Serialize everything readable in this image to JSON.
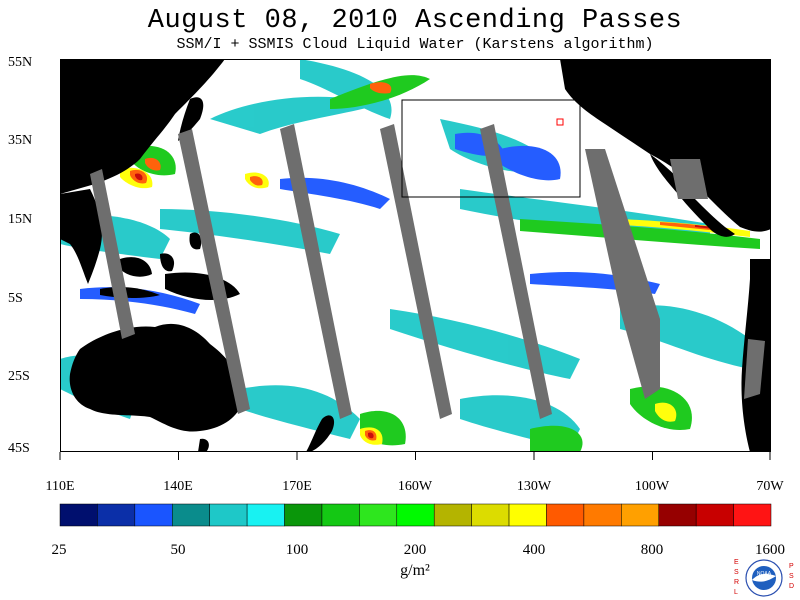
{
  "header": {
    "title": "August 08, 2010  Ascending Passes",
    "subtitle": "SSM/I + SSMIS Cloud Liquid Water (Karstens algorithm)"
  },
  "map": {
    "lat_labels": [
      "55N",
      "35N",
      "15N",
      "5S",
      "25S",
      "45S"
    ],
    "lon_labels": [
      "110E",
      "140E",
      "170E",
      "160W",
      "130W",
      "100W",
      "70W"
    ],
    "colors": {
      "ocean_clear": "#ffffff",
      "land": "#000000",
      "missing_swath": "#6e6e6e",
      "box_outline": "#000000",
      "marker": "#ff0000"
    }
  },
  "colorbar": {
    "units": "g/m²",
    "tick_labels": [
      "25",
      "50",
      "100",
      "200",
      "400",
      "800",
      "1600"
    ],
    "colors": [
      "#000f6e",
      "#0b2fa8",
      "#1a55ff",
      "#0a8c8c",
      "#1ec8c8",
      "#18f2f2",
      "#0a960a",
      "#14c814",
      "#2ee61e",
      "#00fa00",
      "#b4b400",
      "#dcdc00",
      "#ffff00",
      "#ff5a00",
      "#ff7a00",
      "#ffa000",
      "#960000",
      "#c80000",
      "#ff1414"
    ]
  },
  "logo": {
    "left_text": "ESRL",
    "right_text": "PSD",
    "center_text": "NOAA"
  }
}
